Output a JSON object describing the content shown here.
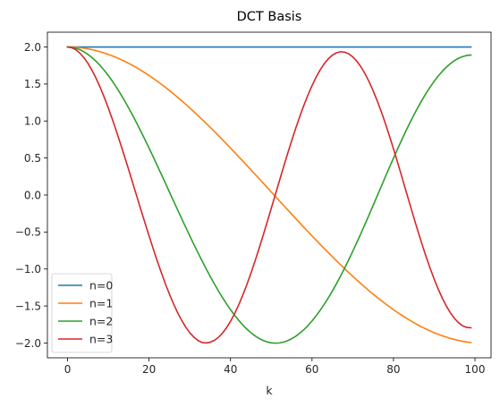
{
  "chart_data": {
    "type": "line",
    "title": "DCT Basis",
    "xlabel": "k",
    "ylabel": "",
    "xlim": [
      -4.95,
      103.95
    ],
    "ylim": [
      -2.2,
      2.2
    ],
    "xticks": [
      0,
      20,
      40,
      60,
      80,
      100
    ],
    "xtick_labels": [
      "0",
      "20",
      "40",
      "60",
      "80",
      "100"
    ],
    "yticks": [
      2.0,
      1.5,
      1.0,
      0.5,
      0.0,
      -0.5,
      -1.0,
      -1.5,
      -2.0
    ],
    "ytick_labels": [
      "2.0",
      "1.5",
      "1.0",
      "0.5",
      "0.0",
      "−0.5",
      "−1.0",
      "−1.5",
      "−2.0"
    ],
    "grid": false,
    "legend_position": "lower left",
    "x": {
      "start": 0,
      "stop": 99,
      "step": 1
    },
    "series": [
      {
        "name": "n=0",
        "color": "#1f77b4",
        "values": [
          2.0,
          2.0,
          2.0,
          2.0,
          2.0,
          2.0,
          2.0,
          2.0,
          2.0,
          2.0,
          2.0,
          2.0,
          2.0,
          2.0,
          2.0,
          2.0,
          2.0,
          2.0,
          2.0,
          2.0,
          2.0,
          2.0,
          2.0,
          2.0,
          2.0,
          2.0,
          2.0,
          2.0,
          2.0,
          2.0,
          2.0,
          2.0,
          2.0,
          2.0,
          2.0,
          2.0,
          2.0,
          2.0,
          2.0,
          2.0,
          2.0,
          2.0,
          2.0,
          2.0,
          2.0,
          2.0,
          2.0,
          2.0,
          2.0,
          2.0,
          2.0,
          2.0,
          2.0,
          2.0,
          2.0,
          2.0,
          2.0,
          2.0,
          2.0,
          2.0,
          2.0,
          2.0,
          2.0,
          2.0,
          2.0,
          2.0,
          2.0,
          2.0,
          2.0,
          2.0,
          2.0,
          2.0,
          2.0,
          2.0,
          2.0,
          2.0,
          2.0,
          2.0,
          2.0,
          2.0,
          2.0,
          2.0,
          2.0,
          2.0,
          2.0,
          2.0,
          2.0,
          2.0,
          2.0,
          2.0,
          2.0,
          2.0,
          2.0,
          2.0,
          2.0,
          2.0,
          2.0,
          2.0,
          2.0,
          2.0
        ]
      },
      {
        "name": "n=1",
        "color": "#ff7f0e",
        "values": [
          2.0,
          1.999,
          1.996,
          1.991,
          1.984,
          1.975,
          1.964,
          1.951,
          1.936,
          1.919,
          1.9,
          1.88,
          1.857,
          1.833,
          1.807,
          1.779,
          1.75,
          1.718,
          1.685,
          1.651,
          1.615,
          1.577,
          1.538,
          1.497,
          1.455,
          1.412,
          1.367,
          1.321,
          1.274,
          1.226,
          1.176,
          1.126,
          1.074,
          1.022,
          0.969,
          0.915,
          0.86,
          0.804,
          0.748,
          0.691,
          0.634,
          0.576,
          0.518,
          0.459,
          0.4,
          0.341,
          0.281,
          0.222,
          0.162,
          0.102,
          0.041,
          -0.019,
          -0.079,
          -0.139,
          -0.199,
          -0.258,
          -0.318,
          -0.377,
          -0.436,
          -0.494,
          -0.552,
          -0.61,
          -0.667,
          -0.723,
          -0.779,
          -0.834,
          -0.889,
          -0.942,
          -0.995,
          -1.047,
          -1.098,
          -1.149,
          -1.198,
          -1.246,
          -1.293,
          -1.339,
          -1.384,
          -1.427,
          -1.469,
          -1.51,
          -1.55,
          -1.588,
          -1.624,
          -1.66,
          -1.693,
          -1.725,
          -1.756,
          -1.785,
          -1.812,
          -1.837,
          -1.861,
          -1.883,
          -1.903,
          -1.921,
          -1.938,
          -1.953,
          -1.966,
          -1.977,
          -1.986,
          -1.993
        ]
      },
      {
        "name": "n=2",
        "color": "#2ca02c",
        "values": [
          2.0,
          1.996,
          1.984,
          1.964,
          1.936,
          1.9,
          1.857,
          1.807,
          1.75,
          1.685,
          1.615,
          1.538,
          1.455,
          1.367,
          1.274,
          1.176,
          1.074,
          0.969,
          0.86,
          0.748,
          0.634,
          0.518,
          0.4,
          0.281,
          0.162,
          0.041,
          -0.079,
          -0.199,
          -0.318,
          -0.436,
          -0.552,
          -0.667,
          -0.779,
          -0.889,
          -0.995,
          -1.098,
          -1.198,
          -1.293,
          -1.384,
          -1.469,
          -1.55,
          -1.624,
          -1.693,
          -1.756,
          -1.812,
          -1.861,
          -1.903,
          -1.938,
          -1.966,
          -1.986,
          -1.998,
          -2.002,
          -1.999,
          -1.988,
          -1.969,
          -1.943,
          -1.909,
          -1.868,
          -1.82,
          -1.765,
          -1.703,
          -1.634,
          -1.558,
          -1.477,
          -1.39,
          -1.297,
          -1.199,
          -1.096,
          -0.988,
          -0.876,
          -0.761,
          -0.642,
          -0.52,
          -0.396,
          -0.27,
          -0.142,
          -0.013,
          0.116,
          0.245,
          0.372,
          0.498,
          0.622,
          0.742,
          0.86,
          0.973,
          1.081,
          1.184,
          1.282,
          1.374,
          1.459,
          1.538,
          1.609,
          1.673,
          1.729,
          1.777,
          1.817,
          1.848,
          1.871,
          1.886,
          1.892
        ]
      },
      {
        "name": "n=3",
        "color": "#d62728",
        "values": [
          2.0,
          1.991,
          1.964,
          1.919,
          1.857,
          1.779,
          1.685,
          1.577,
          1.455,
          1.321,
          1.176,
          1.022,
          0.86,
          0.691,
          0.518,
          0.341,
          0.162,
          -0.019,
          -0.199,
          -0.377,
          -0.552,
          -0.723,
          -0.889,
          -1.047,
          -1.198,
          -1.339,
          -1.469,
          -1.588,
          -1.693,
          -1.785,
          -1.861,
          -1.921,
          -1.966,
          -1.993,
          -2.0,
          -1.989,
          -1.966,
          -1.925,
          -1.868,
          -1.795,
          -1.707,
          -1.603,
          -1.486,
          -1.355,
          -1.212,
          -1.058,
          -0.895,
          -0.724,
          -0.547,
          -0.365,
          -0.18,
          0.006,
          0.192,
          0.376,
          0.557,
          0.732,
          0.9,
          1.061,
          1.211,
          1.35,
          1.477,
          1.591,
          1.69,
          1.773,
          1.84,
          1.89,
          1.922,
          1.936,
          1.931,
          1.908,
          1.867,
          1.809,
          1.733,
          1.641,
          1.533,
          1.411,
          1.275,
          1.127,
          0.968,
          0.8,
          0.624,
          0.442,
          0.256,
          0.068,
          -0.12,
          -0.306,
          -0.488,
          -0.664,
          -0.832,
          -0.991,
          -1.138,
          -1.274,
          -1.396,
          -1.503,
          -1.595,
          -1.67,
          -1.728,
          -1.768,
          -1.79,
          -1.794
        ]
      }
    ]
  }
}
